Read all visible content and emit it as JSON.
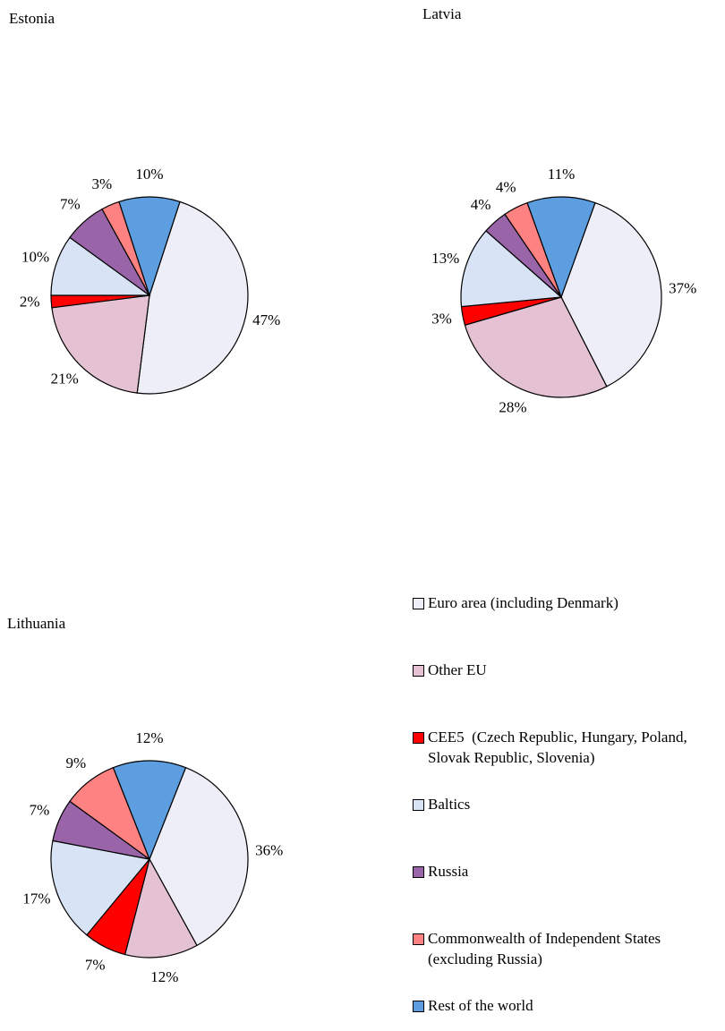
{
  "chart_data": [
    {
      "type": "pie",
      "title": "Estonia",
      "values": [
        47,
        21,
        2,
        10,
        7,
        3,
        10
      ],
      "value_labels": [
        "47%",
        "21%",
        "2%",
        "10%",
        "7%",
        "3%",
        "10%"
      ]
    },
    {
      "type": "pie",
      "title": "Latvia",
      "values": [
        37,
        28,
        3,
        13,
        4,
        4,
        11
      ],
      "value_labels": [
        "37%",
        "28%",
        "3%",
        "13%",
        "4%",
        "4%",
        "11%"
      ]
    },
    {
      "type": "pie",
      "title": "Lithuania",
      "values": [
        36,
        12,
        7,
        17,
        7,
        9,
        12
      ],
      "value_labels": [
        "36%",
        "12%",
        "7%",
        "17%",
        "7%",
        "9%",
        "12%"
      ]
    }
  ],
  "legend": {
    "labels": [
      "Euro area (including Denmark)",
      "Other EU",
      "CEE5  (Czech Republic, Hungary, Poland, Slovak Republic, Slovenia)",
      "Baltics",
      "Russia",
      "Commonwealth of Independent States (excluding Russia)",
      "Rest of the world"
    ],
    "colors": [
      "#eeeef8",
      "#e4c2d4",
      "#ff0000",
      "#d8e4f6",
      "#9a64a8",
      "#ff8282",
      "#5c9ee0"
    ]
  }
}
